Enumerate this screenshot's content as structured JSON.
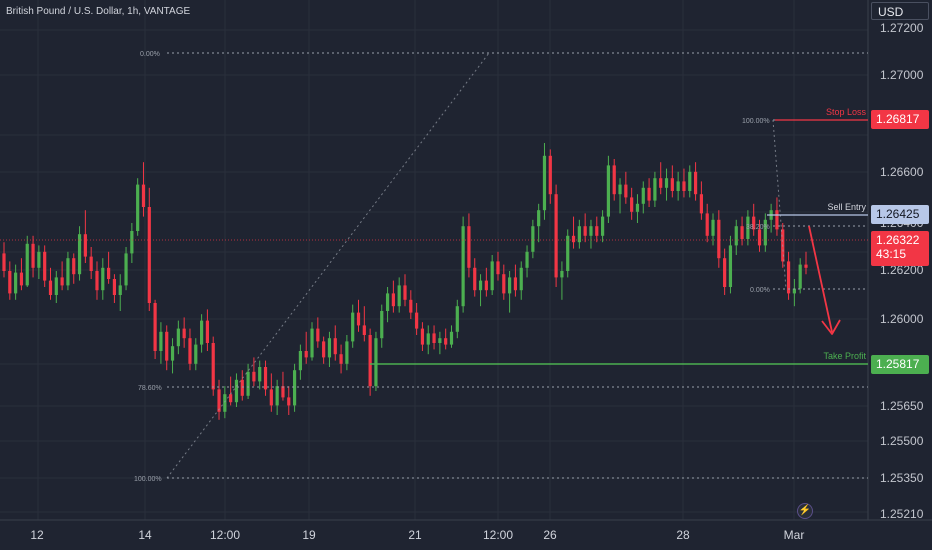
{
  "app": {
    "title": "British Pound / U.S. Dollar, 1h, VANTAGE",
    "currency": "USD"
  },
  "colors": {
    "background": "#1f2431",
    "up": "#4caf50",
    "down": "#f23645",
    "grid": "#2a2f3c",
    "axis_text": "#c3c6ce",
    "fib": "#9aa0aa",
    "stop_loss": "#f23645",
    "sell_entry": "#b7c7e8",
    "take_profit": "#4caf50",
    "current_price": "#f23645"
  },
  "price_axis": {
    "ticks": [
      "1.27200",
      "1.27000",
      "1.26600",
      "1.26000",
      "1.25650",
      "1.25500",
      "1.25350",
      "1.25210"
    ]
  },
  "time_axis": {
    "ticks": [
      "12",
      "14",
      "12:00",
      "19",
      "21",
      "12:00",
      "26",
      "28",
      "Mar"
    ]
  },
  "levels": {
    "stop_loss": {
      "label": "Stop Loss",
      "price": "1.26817"
    },
    "sell_entry": {
      "label": "Sell Entry",
      "price": "1.26425"
    },
    "take_profit": {
      "label": "Take Profit",
      "price": "1.25817"
    },
    "current": {
      "price": "1.26322",
      "countdown": "43:15"
    },
    "mid_axis_1": "1.26200",
    "mid_axis_2": "1.26400"
  },
  "fib_main": {
    "labels": [
      "0.00%",
      "78.60%",
      "100.00%"
    ]
  },
  "fib_small": {
    "labels": [
      "100.00%",
      "38.20%",
      "0.00%"
    ]
  },
  "chart_data": {
    "type": "candlestick",
    "title": "British Pound / U.S. Dollar, 1h, VANTAGE",
    "x_ticks": [
      "12",
      "14",
      "12:00",
      "19",
      "21",
      "12:00",
      "26",
      "28",
      "Mar"
    ],
    "y_ticks": [
      1.272,
      1.27,
      1.266,
      1.26,
      1.2565,
      1.255,
      1.2535,
      1.2521
    ],
    "ylim": [
      1.2521,
      1.2728
    ],
    "grid": true,
    "legend": "none",
    "horizontal_levels": [
      {
        "name": "Stop Loss",
        "value": 1.26817
      },
      {
        "name": "Sell Entry",
        "value": 1.26425
      },
      {
        "name": "Take Profit",
        "value": 1.25817
      }
    ],
    "last_price": 1.26322,
    "candles": [
      [
        1.2641,
        1.2648,
        1.2626,
        1.263
      ],
      [
        1.263,
        1.2636,
        1.2612,
        1.2616
      ],
      [
        1.2616,
        1.2634,
        1.2612,
        1.2629
      ],
      [
        1.2629,
        1.2638,
        1.2618,
        1.2621
      ],
      [
        1.2621,
        1.2652,
        1.262,
        1.2647
      ],
      [
        1.2647,
        1.2652,
        1.2626,
        1.2632
      ],
      [
        1.2632,
        1.2646,
        1.2625,
        1.2642
      ],
      [
        1.2642,
        1.2646,
        1.262,
        1.2624
      ],
      [
        1.2624,
        1.2632,
        1.2612,
        1.2615
      ],
      [
        1.2615,
        1.263,
        1.261,
        1.2626
      ],
      [
        1.2626,
        1.2636,
        1.2618,
        1.2621
      ],
      [
        1.2621,
        1.2642,
        1.2618,
        1.2638
      ],
      [
        1.2638,
        1.2641,
        1.2622,
        1.2628
      ],
      [
        1.2628,
        1.2658,
        1.2624,
        1.2653
      ],
      [
        1.2653,
        1.2668,
        1.2635,
        1.2639
      ],
      [
        1.2639,
        1.2645,
        1.2625,
        1.263
      ],
      [
        1.263,
        1.2636,
        1.2612,
        1.2618
      ],
      [
        1.2618,
        1.2638,
        1.2612,
        1.2632
      ],
      [
        1.2632,
        1.2642,
        1.2622,
        1.2625
      ],
      [
        1.2625,
        1.2628,
        1.261,
        1.2615
      ],
      [
        1.2615,
        1.2628,
        1.2605,
        1.2621
      ],
      [
        1.2621,
        1.2645,
        1.2618,
        1.2641
      ],
      [
        1.2641,
        1.266,
        1.2635,
        1.2655
      ],
      [
        1.2655,
        1.2688,
        1.2652,
        1.2684
      ],
      [
        1.2684,
        1.2698,
        1.2664,
        1.267
      ],
      [
        1.267,
        1.2682,
        1.2605,
        1.261
      ],
      [
        1.261,
        1.2612,
        1.2575,
        1.258
      ],
      [
        1.258,
        1.2598,
        1.2572,
        1.2592
      ],
      [
        1.2592,
        1.2596,
        1.2568,
        1.2574
      ],
      [
        1.2574,
        1.2588,
        1.2566,
        1.2583
      ],
      [
        1.2583,
        1.2599,
        1.2578,
        1.2594
      ],
      [
        1.2594,
        1.2601,
        1.2582,
        1.2588
      ],
      [
        1.2588,
        1.2594,
        1.2568,
        1.2572
      ],
      [
        1.2572,
        1.2588,
        1.2568,
        1.2584
      ],
      [
        1.2584,
        1.2603,
        1.2579,
        1.2599
      ],
      [
        1.2599,
        1.2606,
        1.258,
        1.2585
      ],
      [
        1.2585,
        1.2589,
        1.2552,
        1.2556
      ],
      [
        1.2556,
        1.2562,
        1.2537,
        1.2542
      ],
      [
        1.2542,
        1.2558,
        1.2538,
        1.2553
      ],
      [
        1.2553,
        1.2564,
        1.2546,
        1.2548
      ],
      [
        1.2548,
        1.2566,
        1.2545,
        1.2562
      ],
      [
        1.2562,
        1.2568,
        1.2549,
        1.2552
      ],
      [
        1.2552,
        1.2572,
        1.255,
        1.2567
      ],
      [
        1.2567,
        1.2576,
        1.2558,
        1.2561
      ],
      [
        1.2561,
        1.2574,
        1.2556,
        1.257
      ],
      [
        1.257,
        1.2574,
        1.2552,
        1.2556
      ],
      [
        1.2556,
        1.2566,
        1.2542,
        1.2546
      ],
      [
        1.2546,
        1.2562,
        1.254,
        1.2558
      ],
      [
        1.2558,
        1.2567,
        1.2549,
        1.2551
      ],
      [
        1.2551,
        1.2558,
        1.254,
        1.2546
      ],
      [
        1.2546,
        1.2572,
        1.2542,
        1.2568
      ],
      [
        1.2568,
        1.2584,
        1.2562,
        1.258
      ],
      [
        1.258,
        1.2592,
        1.2572,
        1.2576
      ],
      [
        1.2576,
        1.2598,
        1.2574,
        1.2594
      ],
      [
        1.2594,
        1.2601,
        1.2582,
        1.2586
      ],
      [
        1.2586,
        1.2589,
        1.2572,
        1.2576
      ],
      [
        1.2576,
        1.2592,
        1.257,
        1.2588
      ],
      [
        1.2588,
        1.2596,
        1.2574,
        1.2578
      ],
      [
        1.2578,
        1.2584,
        1.2566,
        1.2572
      ],
      [
        1.2572,
        1.259,
        1.2568,
        1.2586
      ],
      [
        1.2586,
        1.2609,
        1.2582,
        1.2604
      ],
      [
        1.2604,
        1.2612,
        1.2592,
        1.2596
      ],
      [
        1.2596,
        1.2608,
        1.2586,
        1.259
      ],
      [
        1.259,
        1.2594,
        1.2552,
        1.2558
      ],
      [
        1.2558,
        1.2592,
        1.2555,
        1.2588
      ],
      [
        1.2588,
        1.2609,
        1.2582,
        1.2605
      ],
      [
        1.2605,
        1.262,
        1.2598,
        1.2616
      ],
      [
        1.2616,
        1.2624,
        1.2604,
        1.2608
      ],
      [
        1.2608,
        1.2626,
        1.2604,
        1.2621
      ],
      [
        1.2621,
        1.2628,
        1.2608,
        1.2612
      ],
      [
        1.2612,
        1.2618,
        1.26,
        1.2604
      ],
      [
        1.2604,
        1.261,
        1.259,
        1.2594
      ],
      [
        1.2594,
        1.2598,
        1.258,
        1.2584
      ],
      [
        1.2584,
        1.2596,
        1.2578,
        1.2591
      ],
      [
        1.2591,
        1.2596,
        1.2581,
        1.2585
      ],
      [
        1.2585,
        1.2592,
        1.2578,
        1.2588
      ],
      [
        1.2588,
        1.2594,
        1.2581,
        1.2584
      ],
      [
        1.2584,
        1.2596,
        1.2582,
        1.2592
      ],
      [
        1.2592,
        1.2612,
        1.2588,
        1.2608
      ],
      [
        1.2608,
        1.2664,
        1.2604,
        1.2658
      ],
      [
        1.2658,
        1.2666,
        1.2626,
        1.2632
      ],
      [
        1.2632,
        1.2638,
        1.2614,
        1.2618
      ],
      [
        1.2618,
        1.2628,
        1.2608,
        1.2624
      ],
      [
        1.2624,
        1.2632,
        1.2614,
        1.2618
      ],
      [
        1.2618,
        1.264,
        1.2615,
        1.2636
      ],
      [
        1.2636,
        1.2642,
        1.2624,
        1.2628
      ],
      [
        1.2628,
        1.2634,
        1.2612,
        1.2616
      ],
      [
        1.2616,
        1.263,
        1.2604,
        1.2626
      ],
      [
        1.2626,
        1.2634,
        1.2614,
        1.2618
      ],
      [
        1.2618,
        1.2636,
        1.2612,
        1.2632
      ],
      [
        1.2632,
        1.2646,
        1.2626,
        1.2642
      ],
      [
        1.2642,
        1.2662,
        1.2638,
        1.2658
      ],
      [
        1.2658,
        1.2672,
        1.2648,
        1.2668
      ],
      [
        1.2668,
        1.271,
        1.2662,
        1.2702
      ],
      [
        1.2702,
        1.2706,
        1.2672,
        1.2678
      ],
      [
        1.2678,
        1.2684,
        1.262,
        1.2626
      ],
      [
        1.2626,
        1.2636,
        1.2612,
        1.263
      ],
      [
        1.263,
        1.2656,
        1.2626,
        1.2652
      ],
      [
        1.2652,
        1.2664,
        1.2644,
        1.2648
      ],
      [
        1.2648,
        1.2662,
        1.2644,
        1.2658
      ],
      [
        1.2658,
        1.2666,
        1.2648,
        1.2652
      ],
      [
        1.2652,
        1.2662,
        1.2644,
        1.2658
      ],
      [
        1.2658,
        1.2664,
        1.2648,
        1.2652
      ],
      [
        1.2652,
        1.2668,
        1.2648,
        1.2664
      ],
      [
        1.2664,
        1.2702,
        1.266,
        1.2696
      ],
      [
        1.2696,
        1.27,
        1.2674,
        1.2678
      ],
      [
        1.2678,
        1.2688,
        1.2666,
        1.2684
      ],
      [
        1.2684,
        1.2692,
        1.2672,
        1.2676
      ],
      [
        1.2676,
        1.2682,
        1.2662,
        1.2667
      ],
      [
        1.2667,
        1.2678,
        1.266,
        1.2672
      ],
      [
        1.2672,
        1.2686,
        1.2666,
        1.2682
      ],
      [
        1.2682,
        1.2688,
        1.267,
        1.2674
      ],
      [
        1.2674,
        1.2692,
        1.267,
        1.2688
      ],
      [
        1.2688,
        1.2698,
        1.2678,
        1.2682
      ],
      [
        1.2682,
        1.2694,
        1.2674,
        1.2688
      ],
      [
        1.2688,
        1.2696,
        1.2676,
        1.268
      ],
      [
        1.268,
        1.2692,
        1.2674,
        1.2686
      ],
      [
        1.2686,
        1.2694,
        1.2676,
        1.268
      ],
      [
        1.268,
        1.2696,
        1.2676,
        1.2692
      ],
      [
        1.2692,
        1.2698,
        1.2674,
        1.2678
      ],
      [
        1.2678,
        1.2686,
        1.2662,
        1.2666
      ],
      [
        1.2666,
        1.2672,
        1.2648,
        1.2652
      ],
      [
        1.2652,
        1.2666,
        1.2646,
        1.2662
      ],
      [
        1.2662,
        1.2668,
        1.2632,
        1.2638
      ],
      [
        1.2638,
        1.2644,
        1.2615,
        1.262
      ],
      [
        1.262,
        1.2652,
        1.2616,
        1.2646
      ],
      [
        1.2646,
        1.2662,
        1.264,
        1.2658
      ],
      [
        1.2658,
        1.2664,
        1.2646,
        1.265
      ],
      [
        1.265,
        1.2668,
        1.2646,
        1.2664
      ],
      [
        1.2664,
        1.2672,
        1.2652,
        1.2656
      ],
      [
        1.2656,
        1.2662,
        1.2642,
        1.2646
      ],
      [
        1.2646,
        1.2666,
        1.2642,
        1.2662
      ],
      [
        1.2662,
        1.2672,
        1.2654,
        1.2668
      ],
      [
        1.2668,
        1.2676,
        1.2652,
        1.2656
      ],
      [
        1.2656,
        1.266,
        1.2632,
        1.2636
      ],
      [
        1.2636,
        1.2642,
        1.2612,
        1.2616
      ],
      [
        1.2616,
        1.2625,
        1.2608,
        1.2619
      ],
      [
        1.2619,
        1.2638,
        1.2616,
        1.2634
      ],
      [
        1.2634,
        1.2642,
        1.2628,
        1.2632
      ]
    ]
  }
}
